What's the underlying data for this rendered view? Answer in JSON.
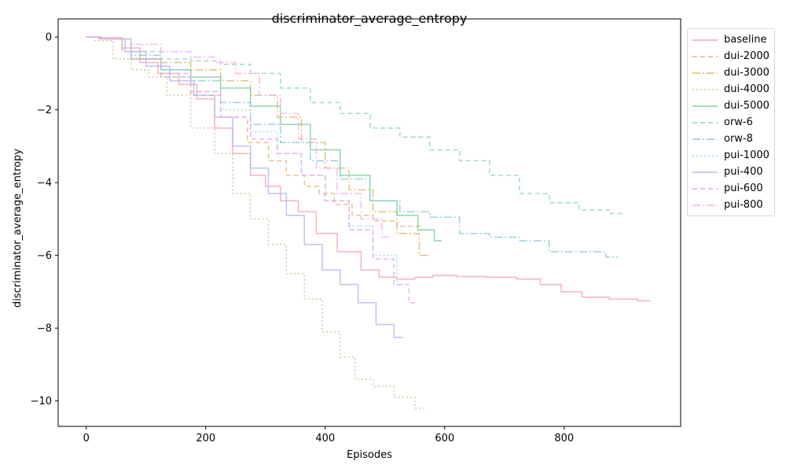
{
  "chart_data": {
    "type": "line",
    "title": "discriminator_average_entropy",
    "xlabel": "Episodes",
    "ylabel": "discriminator_average_entropy",
    "xlim": [
      -47,
      995
    ],
    "ylim": [
      -10.7,
      0.5
    ],
    "xticks": [
      0,
      200,
      400,
      600,
      800
    ],
    "yticks": [
      0,
      -2,
      -4,
      -6,
      -8,
      -10
    ],
    "xtick_labels": [
      "0",
      "200",
      "400",
      "600",
      "800"
    ],
    "ytick_labels": [
      "0",
      "−2",
      "−4",
      "−6",
      "−8",
      "−10"
    ],
    "legend_position": "outside-top-right",
    "series": [
      {
        "name": "baseline",
        "color": "#f4a6b4",
        "dash": "solid",
        "x": [
          0,
          40,
          80,
          100,
          140,
          170,
          200,
          230,
          260,
          290,
          310,
          340,
          370,
          400,
          440,
          480,
          500,
          540,
          560,
          600,
          640,
          700,
          740,
          780,
          810,
          850,
          900,
          945
        ],
        "y": [
          0,
          -0.02,
          -0.3,
          -0.7,
          -1.0,
          -1.3,
          -1.7,
          -2.5,
          -3.2,
          -3.8,
          -4.1,
          -4.5,
          -4.8,
          -5.4,
          -5.9,
          -6.4,
          -6.6,
          -6.65,
          -6.6,
          -6.55,
          -6.58,
          -6.6,
          -6.65,
          -6.8,
          -7.0,
          -7.15,
          -7.2,
          -7.25
        ]
      },
      {
        "name": "dui-2000",
        "color": "#e8b47a",
        "dash": "6,4",
        "x": [
          0,
          50,
          100,
          150,
          200,
          250,
          290,
          320,
          350,
          380,
          400,
          430,
          460,
          500,
          540,
          580
        ],
        "y": [
          0,
          -0.05,
          -0.6,
          -1.1,
          -1.6,
          -2.2,
          -2.9,
          -3.4,
          -3.8,
          -4.1,
          -4.3,
          -4.6,
          -4.9,
          -5.05,
          -5.2,
          -5.3
        ]
      },
      {
        "name": "dui-3000",
        "color": "#d9b76a",
        "dash": "10,3,2,3",
        "x": [
          0,
          40,
          80,
          100,
          150,
          200,
          250,
          300,
          340,
          380,
          420,
          460,
          500,
          540,
          575
        ],
        "y": [
          0,
          -0.05,
          -0.4,
          -0.6,
          -0.7,
          -0.9,
          -1.2,
          -1.6,
          -2.2,
          -2.9,
          -3.6,
          -4.2,
          -4.8,
          -5.4,
          -6.0
        ]
      },
      {
        "name": "dui-4000",
        "color": "#c9c08e",
        "dash": "2,3",
        "x": [
          0,
          30,
          60,
          90,
          120,
          150,
          200,
          230,
          260,
          290,
          320,
          350,
          380,
          410,
          440,
          460,
          500,
          530,
          570
        ],
        "y": [
          0,
          -0.1,
          -0.6,
          -0.9,
          -1.1,
          -1.6,
          -2.5,
          -3.2,
          -4.3,
          -5.0,
          -5.7,
          -6.5,
          -7.2,
          -8.1,
          -8.8,
          -9.4,
          -9.6,
          -9.9,
          -10.2
        ]
      },
      {
        "name": "dui-5000",
        "color": "#82ce98",
        "dash": "solid",
        "x": [
          0,
          50,
          100,
          150,
          200,
          250,
          300,
          350,
          400,
          450,
          500,
          540,
          570,
          595
        ],
        "y": [
          0,
          -0.05,
          -0.6,
          -0.9,
          -1.1,
          -1.4,
          -1.9,
          -2.4,
          -3.1,
          -3.8,
          -4.5,
          -4.9,
          -5.3,
          -5.6
        ]
      },
      {
        "name": "orw-6",
        "color": "#8ed7b8",
        "dash": "6,4",
        "x": [
          0,
          50,
          100,
          150,
          200,
          250,
          300,
          350,
          400,
          450,
          500,
          550,
          600,
          650,
          700,
          750,
          800,
          850,
          900
        ],
        "y": [
          0,
          -0.05,
          -0.4,
          -0.6,
          -0.65,
          -0.75,
          -1.0,
          -1.4,
          -1.8,
          -2.1,
          -2.5,
          -2.75,
          -3.1,
          -3.4,
          -3.8,
          -4.3,
          -4.55,
          -4.75,
          -4.85
        ]
      },
      {
        "name": "orw-8",
        "color": "#86cbd6",
        "dash": "10,3,2,3",
        "x": [
          0,
          50,
          100,
          150,
          200,
          250,
          300,
          350,
          400,
          450,
          500,
          550,
          600,
          650,
          700,
          750,
          800,
          850,
          890
        ],
        "y": [
          0,
          -0.05,
          -0.5,
          -0.9,
          -1.2,
          -1.8,
          -2.4,
          -2.9,
          -3.4,
          -3.9,
          -4.5,
          -4.8,
          -4.95,
          -5.4,
          -5.5,
          -5.6,
          -5.9,
          -5.9,
          -6.05
        ]
      },
      {
        "name": "pui-1000",
        "color": "#9fd0ef",
        "dash": "2,3",
        "x": [
          0,
          50,
          100,
          150,
          200,
          250,
          300,
          340,
          380,
          420,
          460,
          500,
          540
        ],
        "y": [
          0,
          -0.05,
          -0.6,
          -1.1,
          -1.5,
          -2.0,
          -2.6,
          -3.2,
          -3.8,
          -4.5,
          -5.2,
          -6.0,
          -6.8
        ]
      },
      {
        "name": "pui-400",
        "color": "#b5b7ef",
        "dash": "solid",
        "x": [
          0,
          50,
          80,
          120,
          160,
          200,
          230,
          260,
          290,
          320,
          350,
          380,
          410,
          440,
          470,
          500,
          530
        ],
        "y": [
          0,
          -0.05,
          -0.4,
          -0.8,
          -1.2,
          -1.6,
          -2.2,
          -3.0,
          -3.6,
          -4.3,
          -4.9,
          -5.7,
          -6.4,
          -6.8,
          -7.3,
          -7.9,
          -8.25
        ]
      },
      {
        "name": "pui-600",
        "color": "#e9a2ee",
        "dash": "6,4",
        "x": [
          0,
          50,
          100,
          150,
          200,
          250,
          300,
          340,
          380,
          420,
          460,
          500,
          530,
          550
        ],
        "y": [
          0,
          -0.05,
          -0.6,
          -1.0,
          -1.5,
          -2.2,
          -2.8,
          -3.2,
          -3.8,
          -4.5,
          -5.3,
          -6.1,
          -6.8,
          -7.3
        ]
      },
      {
        "name": "pui-800",
        "color": "#f2b2e6",
        "dash": "10,3,2,3",
        "x": [
          0,
          50,
          100,
          150,
          200,
          230,
          270,
          310,
          340,
          370,
          400,
          440,
          480,
          510
        ],
        "y": [
          0,
          -0.05,
          -0.2,
          -0.4,
          -0.55,
          -0.7,
          -1.0,
          -1.6,
          -2.1,
          -2.8,
          -3.6,
          -4.3,
          -5.0,
          -5.5
        ]
      }
    ]
  }
}
